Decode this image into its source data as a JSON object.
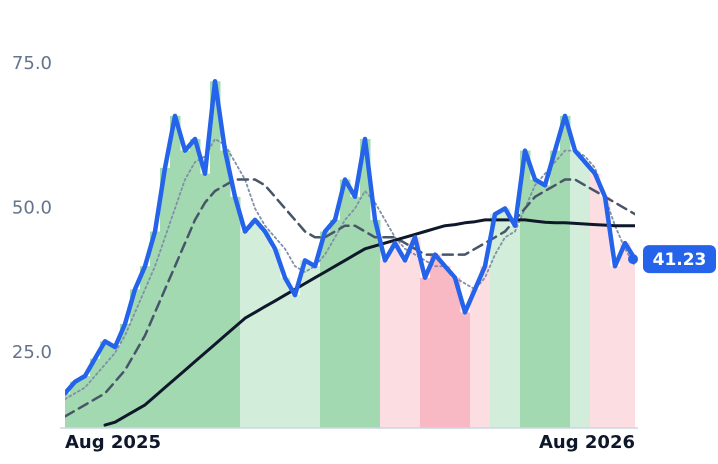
{
  "chart_data": {
    "type": "line",
    "categories": [
      "Aug 2025",
      null,
      null,
      null,
      null,
      null,
      null,
      null,
      null,
      null,
      null,
      null,
      null,
      null,
      null,
      null,
      null,
      null,
      null,
      null,
      null,
      null,
      null,
      null,
      null,
      null,
      null,
      null,
      null,
      null,
      null,
      null,
      null,
      null,
      null,
      null,
      null,
      null,
      null,
      null,
      null,
      null,
      null,
      null,
      null,
      null,
      null,
      null,
      null,
      null,
      null,
      null,
      null,
      null,
      null,
      null,
      null,
      "Aug 2026"
    ],
    "series": [
      {
        "color": "#2563eb",
        "values": [
          18,
          20,
          21,
          24,
          27,
          26,
          30,
          36,
          40,
          46,
          57,
          66,
          60,
          62,
          56,
          72,
          60,
          52,
          46,
          48,
          46,
          43,
          38,
          35,
          41,
          40,
          46,
          48,
          55,
          52,
          62,
          48,
          41,
          44,
          41,
          45,
          38,
          42,
          40,
          38,
          32,
          36,
          40,
          49,
          50,
          47,
          60,
          55,
          54,
          60,
          66,
          60,
          58,
          56,
          52,
          40,
          44,
          41.23
        ]
      },
      {
        "color": "#8090a8",
        "values": [
          17,
          18,
          19,
          21,
          23,
          25,
          28,
          32,
          36,
          40,
          45,
          50,
          55,
          58,
          59,
          62,
          61,
          58,
          55,
          50,
          47,
          45,
          43,
          40,
          39,
          40,
          42,
          45,
          48,
          50,
          53,
          51,
          48,
          45,
          43,
          42,
          41,
          40,
          40,
          38,
          37,
          36,
          38,
          42,
          45,
          46,
          50,
          54,
          56,
          58,
          60,
          60,
          59,
          57,
          52,
          47,
          43,
          40
        ]
      },
      {
        "color": "#475569",
        "values": [
          14,
          15,
          16,
          17,
          18,
          20,
          22,
          25,
          28,
          32,
          36,
          40,
          44,
          48,
          51,
          53,
          54,
          55,
          55,
          55,
          54,
          52,
          50,
          48,
          46,
          45,
          45,
          46,
          47,
          47,
          46,
          45,
          45,
          45,
          44,
          43,
          42,
          42,
          42,
          42,
          42,
          43,
          44,
          45,
          46,
          48,
          50,
          52,
          53,
          54,
          55,
          55,
          54,
          53,
          52,
          51,
          50,
          49
        ]
      },
      {
        "color": "#0f172a",
        "values": [
          null,
          null,
          null,
          null,
          12.5,
          13,
          14,
          15,
          16,
          17.5,
          19,
          20.5,
          22,
          23.5,
          25,
          26.5,
          28,
          29.5,
          31,
          32,
          33,
          34,
          35,
          36,
          37,
          38,
          39,
          40,
          41,
          42,
          43,
          43.5,
          44,
          44.5,
          45,
          45.5,
          46,
          46.5,
          47,
          47.2,
          47.5,
          47.7,
          48,
          48,
          48,
          48,
          48,
          47.8,
          47.6,
          47.5,
          47.5,
          47.4,
          47.3,
          47.2,
          47.1,
          47,
          47,
          47
        ]
      }
    ],
    "area_colors": [
      "#a3d9b1",
      "#a3d9b1",
      "#a3d9b1",
      "#a3d9b1",
      "#a3d9b1",
      "#a3d9b1",
      "#a3d9b1",
      "#a3d9b1",
      "#a3d9b1",
      "#a3d9b1",
      "#a3d9b1",
      "#a3d9b1",
      "#a3d9b1",
      "#a3d9b1",
      "#a3d9b1",
      "#a3d9b1",
      "#a3d9b1",
      "#a3d9b1",
      "#d2eedb",
      "#d2eedb",
      "#d2eedb",
      "#d2eedb",
      "#d2eedb",
      "#d2eedb",
      "#d2eedb",
      "#d2eedb",
      "#a3d9b1",
      "#a3d9b1",
      "#a3d9b1",
      "#a3d9b1",
      "#a3d9b1",
      "#a3d9b1",
      "#fcdde2",
      "#fcdde2",
      "#fcdde2",
      "#fcdde2",
      "#f9b9c4",
      "#f9b9c4",
      "#f9b9c4",
      "#f9b9c4",
      "#f9b9c4",
      "#fcdde2",
      "#fcdde2",
      "#d2eedb",
      "#d2eedb",
      "#d2eedb",
      "#a3d9b1",
      "#a3d9b1",
      "#a3d9b1",
      "#a3d9b1",
      "#a3d9b1",
      "#d2eedb",
      "#d2eedb",
      "#fcdde2",
      "#fcdde2",
      "#fcdde2",
      "#fcdde2",
      "#fcdde2"
    ],
    "ylim": [
      12,
      80
    ],
    "yticks": [
      {
        "value": 25,
        "label": "25.0"
      },
      {
        "value": 50,
        "label": "50.0"
      },
      {
        "value": 75,
        "label": "75.0"
      }
    ],
    "grid": false
  }
}
